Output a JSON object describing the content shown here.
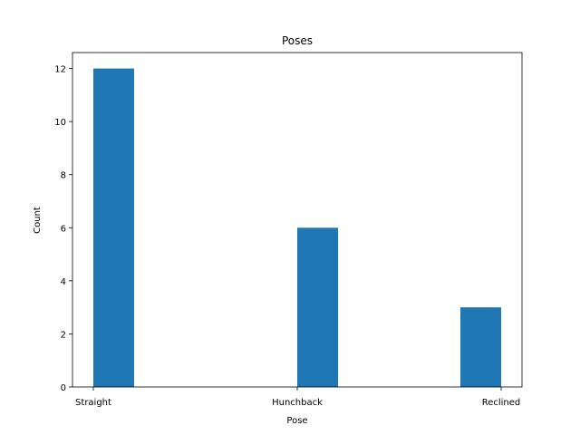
{
  "colors": {
    "bar": "#1f77b4",
    "axis": "#000000",
    "background": "#ffffff"
  },
  "chart_data": {
    "type": "bar",
    "title": "Poses",
    "xlabel": "Pose",
    "ylabel": "Count",
    "categories": [
      "Straight",
      "Hunchback",
      "Reclined"
    ],
    "values": [
      12,
      6,
      3
    ],
    "ylim": [
      0,
      12.6
    ],
    "yticks": [
      0,
      2,
      4,
      6,
      8,
      10,
      12
    ],
    "grid": false,
    "legend": "none"
  }
}
